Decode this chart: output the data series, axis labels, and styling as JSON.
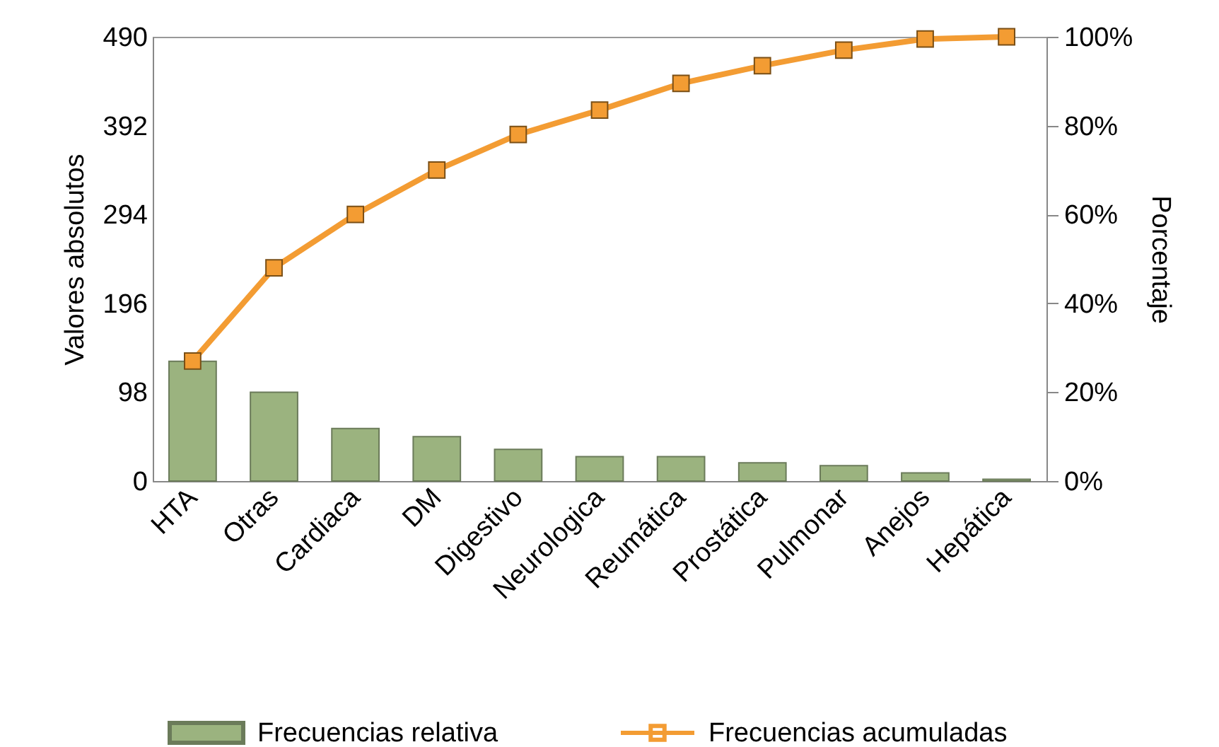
{
  "chart_data": {
    "type": "bar",
    "categories": [
      "HTA",
      "Otras",
      "Cardiaca",
      "DM",
      "Digestivo",
      "Neurologica",
      "Reumática",
      "Prostática",
      "Pulmonar",
      "Anejos",
      "Hepática"
    ],
    "ylabel": "Valores absolutos",
    "y2label": "Porcentaje",
    "ylim": [
      0,
      490
    ],
    "yticks": [
      0,
      98,
      196,
      294,
      392,
      490
    ],
    "y2lim": [
      0,
      100
    ],
    "y2ticks": [
      {
        "value": 0,
        "label": "0%"
      },
      {
        "value": 20,
        "label": "20%"
      },
      {
        "value": 40,
        "label": "40%"
      },
      {
        "value": 60,
        "label": "60%"
      },
      {
        "value": 80,
        "label": "80%"
      },
      {
        "value": 100,
        "label": "100%"
      }
    ],
    "series": [
      {
        "name": "Frecuencias relativa",
        "color": "#9bb37f",
        "values": [
          132,
          98,
          58,
          49,
          35,
          27,
          27,
          20,
          17,
          9,
          2
        ]
      },
      {
        "name": "Frecuencias acumuladas",
        "type": "line",
        "axis": "y2",
        "color": "#f39c33",
        "values": [
          27,
          48,
          60,
          70,
          78,
          83.5,
          89.5,
          93.5,
          97,
          99.5,
          100
        ]
      }
    ],
    "marker": "square",
    "line_style": "solid",
    "legend": "bottom",
    "grid": false
  }
}
